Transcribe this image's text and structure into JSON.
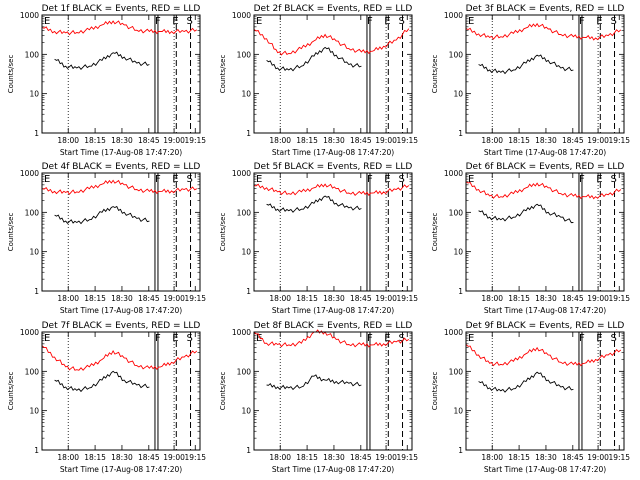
{
  "figure": {
    "xlabel": "Start Time (17-Aug-08 17:47:20)",
    "ylabel": "Counts/sec"
  },
  "chart_data": [
    {
      "type": "line",
      "title": "Det 1f BLACK = Events, RED = LLD",
      "ylog": true,
      "ylim": [
        1,
        1000
      ],
      "x_ticks": [
        "18:00",
        "18:15",
        "18:30",
        "18:45",
        "19:00",
        "19:15"
      ],
      "y_ticks": [
        "1",
        "10",
        "100",
        "1000"
      ],
      "markers": [
        "E",
        "F",
        "E",
        "S"
      ],
      "series": [
        {
          "name": "RED = LLD",
          "color": "#ff0000",
          "x": [
            0,
            8,
            15,
            22,
            30,
            38,
            45,
            52,
            60,
            68,
            75,
            82,
            90,
            98
          ],
          "y": [
            480,
            380,
            350,
            360,
            420,
            560,
            700,
            560,
            410,
            380,
            380,
            380,
            380,
            420
          ]
        },
        {
          "name": "BLACK = Events",
          "color": "#000000",
          "x": [
            8,
            15,
            22,
            30,
            38,
            45,
            52,
            60,
            68
          ],
          "y": [
            75,
            50,
            45,
            50,
            70,
            110,
            85,
            60,
            55
          ]
        }
      ]
    },
    {
      "type": "line",
      "title": "Det 2f BLACK = Events, RED = LLD",
      "ylog": true,
      "ylim": [
        1,
        1000
      ],
      "x_ticks": [
        "18:00",
        "18:15",
        "18:30",
        "18:45",
        "19:00",
        "19:15"
      ],
      "y_ticks": [
        "1",
        "10",
        "100",
        "1000"
      ],
      "markers": [
        "E",
        "F",
        "E",
        "S"
      ],
      "series": [
        {
          "name": "RED = LLD",
          "color": "#ff0000",
          "x": [
            0,
            8,
            15,
            22,
            30,
            38,
            45,
            52,
            60,
            68,
            75,
            82,
            90,
            98
          ],
          "y": [
            430,
            250,
            110,
            105,
            140,
            220,
            320,
            220,
            140,
            115,
            120,
            160,
            230,
            450
          ]
        },
        {
          "name": "BLACK = Events",
          "color": "#000000",
          "x": [
            8,
            15,
            22,
            30,
            38,
            45,
            52,
            60,
            68
          ],
          "y": [
            70,
            45,
            40,
            50,
            90,
            150,
            95,
            55,
            50
          ]
        }
      ]
    },
    {
      "type": "line",
      "title": "Det 3f BLACK = Events, RED = LLD",
      "ylog": true,
      "ylim": [
        1,
        1000
      ],
      "x_ticks": [
        "18:00",
        "18:15",
        "18:30",
        "18:45",
        "19:00",
        "19:15"
      ],
      "y_ticks": [
        "1",
        "10",
        "100",
        "1000"
      ],
      "markers": [
        "E",
        "F",
        "E",
        "S"
      ],
      "series": [
        {
          "name": "RED = LLD",
          "color": "#ff0000",
          "x": [
            0,
            8,
            15,
            22,
            30,
            38,
            45,
            52,
            60,
            68,
            75,
            82,
            90,
            98
          ],
          "y": [
            450,
            330,
            270,
            280,
            340,
            470,
            600,
            440,
            320,
            280,
            270,
            260,
            300,
            420
          ]
        },
        {
          "name": "BLACK = Events",
          "color": "#000000",
          "x": [
            8,
            15,
            22,
            30,
            38,
            45,
            52,
            60,
            68
          ],
          "y": [
            55,
            40,
            35,
            40,
            60,
            95,
            70,
            45,
            40
          ]
        }
      ]
    },
    {
      "type": "line",
      "title": "Det 4f BLACK = Events, RED = LLD",
      "ylog": true,
      "ylim": [
        1,
        1000
      ],
      "x_ticks": [
        "18:00",
        "18:15",
        "18:30",
        "18:45",
        "19:00",
        "19:15"
      ],
      "y_ticks": [
        "1",
        "10",
        "100",
        "1000"
      ],
      "markers": [
        "E",
        "F",
        "E",
        "S"
      ],
      "series": [
        {
          "name": "RED = LLD",
          "color": "#ff0000",
          "x": [
            0,
            8,
            15,
            22,
            30,
            38,
            45,
            52,
            60,
            68,
            75,
            82,
            90,
            98
          ],
          "y": [
            400,
            340,
            320,
            330,
            400,
            520,
            650,
            500,
            380,
            340,
            340,
            350,
            380,
            400
          ]
        },
        {
          "name": "BLACK = Events",
          "color": "#000000",
          "x": [
            8,
            15,
            22,
            30,
            38,
            45,
            52,
            60,
            68
          ],
          "y": [
            85,
            60,
            55,
            65,
            100,
            140,
            100,
            70,
            60
          ]
        }
      ]
    },
    {
      "type": "line",
      "title": "Det 5f BLACK = Events, RED = LLD",
      "ylog": true,
      "ylim": [
        1,
        1000
      ],
      "x_ticks": [
        "18:00",
        "18:15",
        "18:30",
        "18:45",
        "19:00",
        "19:15"
      ],
      "y_ticks": [
        "1",
        "10",
        "100",
        "1000"
      ],
      "markers": [
        "E",
        "F",
        "E",
        "S"
      ],
      "series": [
        {
          "name": "RED = LLD",
          "color": "#ff0000",
          "x": [
            0,
            8,
            15,
            22,
            30,
            38,
            45,
            52,
            60,
            68,
            75,
            82,
            90,
            98
          ],
          "y": [
            480,
            420,
            330,
            300,
            330,
            420,
            520,
            400,
            310,
            300,
            310,
            330,
            380,
            480
          ]
        },
        {
          "name": "BLACK = Events",
          "color": "#000000",
          "x": [
            8,
            15,
            22,
            30,
            38,
            45,
            52,
            60,
            68
          ],
          "y": [
            160,
            120,
            110,
            120,
            170,
            260,
            170,
            130,
            125
          ]
        }
      ]
    },
    {
      "type": "line",
      "title": "Det 6f BLACK = Events, RED = LLD",
      "ylog": true,
      "ylim": [
        1,
        1000
      ],
      "x_ticks": [
        "18:00",
        "18:15",
        "18:30",
        "18:45",
        "19:00",
        "19:15"
      ],
      "y_ticks": [
        "1",
        "10",
        "100",
        "1000"
      ],
      "markers": [
        "E",
        "F",
        "E",
        "S"
      ],
      "series": [
        {
          "name": "RED = LLD",
          "color": "#ff0000",
          "x": [
            0,
            8,
            15,
            22,
            30,
            38,
            45,
            52,
            60,
            68,
            75,
            82,
            90,
            98
          ],
          "y": [
            600,
            380,
            260,
            250,
            300,
            420,
            550,
            420,
            300,
            260,
            250,
            250,
            280,
            380
          ]
        },
        {
          "name": "BLACK = Events",
          "color": "#000000",
          "x": [
            8,
            15,
            22,
            30,
            38,
            45,
            52,
            60,
            68
          ],
          "y": [
            110,
            75,
            65,
            75,
            110,
            160,
            100,
            75,
            55
          ]
        }
      ]
    },
    {
      "type": "line",
      "title": "Det 7f BLACK = Events, RED = LLD",
      "ylog": true,
      "ylim": [
        1,
        1000
      ],
      "x_ticks": [
        "18:00",
        "18:15",
        "18:30",
        "18:45",
        "19:00",
        "19:15"
      ],
      "y_ticks": [
        "1",
        "10",
        "100",
        "1000"
      ],
      "markers": [
        "E",
        "F",
        "E",
        "S"
      ],
      "series": [
        {
          "name": "RED = LLD",
          "color": "#ff0000",
          "x": [
            0,
            8,
            15,
            22,
            30,
            38,
            45,
            52,
            60,
            68,
            75,
            82,
            90,
            98
          ],
          "y": [
            450,
            230,
            130,
            110,
            130,
            200,
            330,
            220,
            140,
            120,
            130,
            170,
            230,
            330
          ]
        },
        {
          "name": "BLACK = Events",
          "color": "#000000",
          "x": [
            8,
            15,
            22,
            30,
            38,
            45,
            52,
            60,
            68
          ],
          "y": [
            60,
            40,
            33,
            38,
            60,
            100,
            60,
            45,
            40
          ]
        }
      ]
    },
    {
      "type": "line",
      "title": "Det 8f BLACK = Events, RED = LLD",
      "ylog": true,
      "ylim": [
        1,
        1000
      ],
      "x_ticks": [
        "18:00",
        "18:15",
        "18:30",
        "18:45",
        "19:00",
        "19:15"
      ],
      "y_ticks": [
        "1",
        "10",
        "100",
        "1000"
      ],
      "markers": [
        "E",
        "F",
        "E",
        "S"
      ],
      "series": [
        {
          "name": "RED = LLD",
          "color": "#ff0000",
          "x": [
            0,
            8,
            15,
            22,
            30,
            38,
            45,
            52,
            60,
            68,
            75,
            82,
            90,
            98
          ],
          "y": [
            1000,
            520,
            480,
            470,
            520,
            1000,
            1000,
            650,
            480,
            470,
            470,
            500,
            560,
            650
          ]
        },
        {
          "name": "BLACK = Events",
          "color": "#000000",
          "x": [
            8,
            15,
            22,
            30,
            38,
            45,
            52,
            60,
            68
          ],
          "y": [
            45,
            40,
            38,
            40,
            75,
            60,
            55,
            50,
            45
          ]
        }
      ]
    },
    {
      "type": "line",
      "title": "Det 9f BLACK = Events, RED = LLD",
      "ylog": true,
      "ylim": [
        1,
        1000
      ],
      "x_ticks": [
        "18:00",
        "18:15",
        "18:30",
        "18:45",
        "19:00",
        "19:15"
      ],
      "y_ticks": [
        "1",
        "10",
        "100",
        "1000"
      ],
      "markers": [
        "E",
        "F",
        "E",
        "S"
      ],
      "series": [
        {
          "name": "RED = LLD",
          "color": "#ff0000",
          "x": [
            0,
            8,
            15,
            22,
            30,
            38,
            45,
            52,
            60,
            68,
            75,
            82,
            90,
            98
          ],
          "y": [
            480,
            260,
            160,
            150,
            180,
            280,
            400,
            260,
            170,
            150,
            160,
            200,
            260,
            350
          ]
        },
        {
          "name": "BLACK = Events",
          "color": "#000000",
          "x": [
            8,
            15,
            22,
            30,
            38,
            45,
            52,
            60,
            68
          ],
          "y": [
            55,
            38,
            32,
            36,
            55,
            95,
            60,
            40,
            35
          ]
        }
      ]
    }
  ]
}
